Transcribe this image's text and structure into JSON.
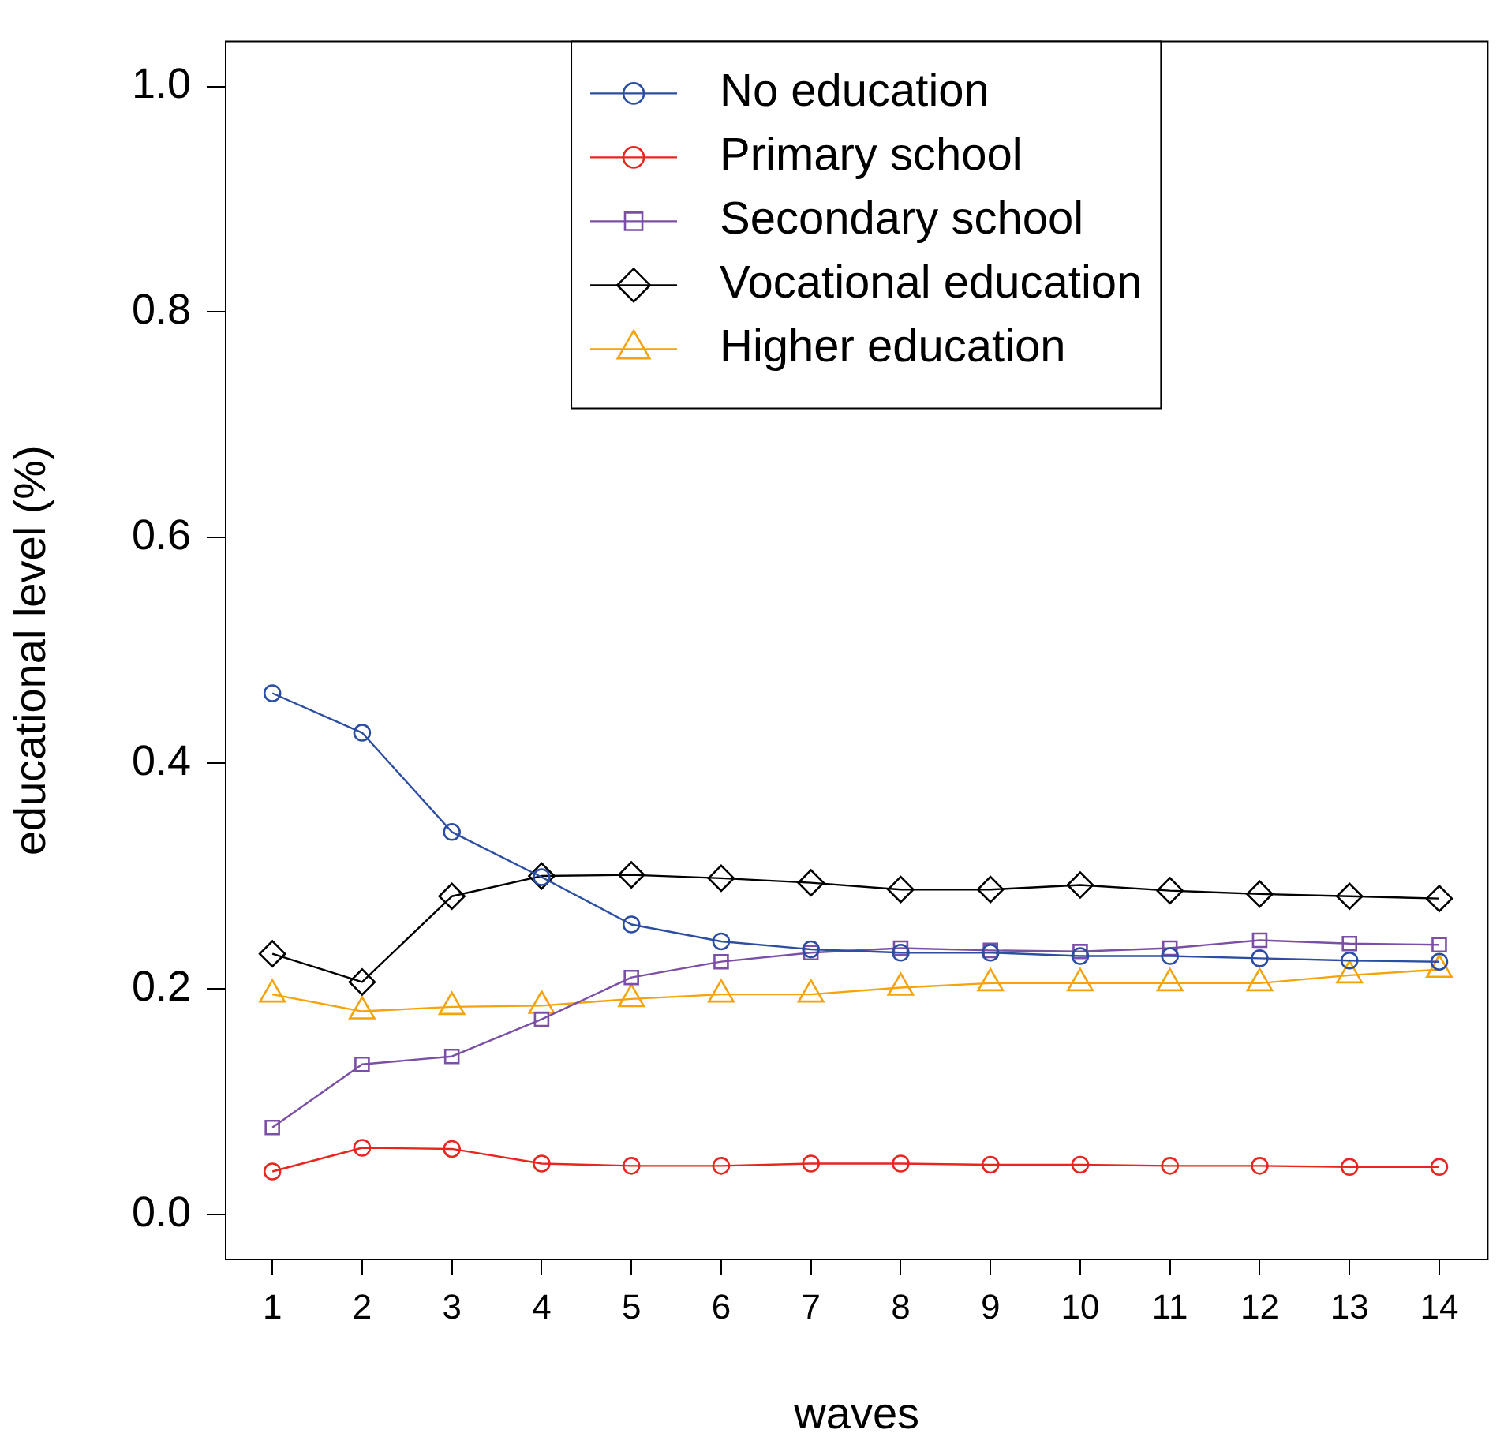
{
  "chart_data": {
    "type": "line",
    "xlabel": "waves",
    "ylabel": "educational level (%)",
    "x": [
      1,
      2,
      3,
      4,
      5,
      6,
      7,
      8,
      9,
      10,
      11,
      12,
      13,
      14
    ],
    "xlim": [
      0.48,
      14.54
    ],
    "xticks": [
      1,
      2,
      3,
      4,
      5,
      6,
      7,
      8,
      9,
      10,
      11,
      12,
      13,
      14
    ],
    "ylim": [
      -0.04,
      1.04
    ],
    "yticks": [
      {
        "value": 0,
        "label": "0.0"
      },
      0.2,
      0.4,
      0.6,
      0.8,
      {
        "value": 1,
        "label": "1.0"
      }
    ],
    "grid": false,
    "legend": "top",
    "line_style": "solid",
    "series": [
      {
        "name": "No education",
        "color": "#2b4ea2",
        "marker": "circle",
        "values": [
          0.462,
          0.427,
          0.339,
          0.299,
          0.257,
          0.242,
          0.235,
          0.232,
          0.232,
          0.229,
          0.229,
          0.227,
          0.225,
          0.224
        ]
      },
      {
        "name": "Primary school",
        "color": "#e8251f",
        "marker": "circle",
        "values": [
          0.038,
          0.059,
          0.058,
          0.045,
          0.043,
          0.043,
          0.045,
          0.045,
          0.044,
          0.044,
          0.043,
          0.043,
          0.042,
          0.042
        ]
      },
      {
        "name": "Secondary school",
        "color": "#7b4fa6",
        "marker": "square",
        "values": [
          0.077,
          0.133,
          0.14,
          0.173,
          0.21,
          0.224,
          0.232,
          0.236,
          0.234,
          0.233,
          0.236,
          0.243,
          0.24,
          0.239
        ]
      },
      {
        "name": "Vocational education",
        "color": "#000000",
        "marker": "diamond",
        "values": [
          0.231,
          0.206,
          0.282,
          0.3,
          0.301,
          0.298,
          0.294,
          0.288,
          0.288,
          0.292,
          0.287,
          0.284,
          0.282,
          0.28
        ]
      },
      {
        "name": "Higher education",
        "color": "#f5a30a",
        "marker": "triangle",
        "values": [
          0.195,
          0.18,
          0.184,
          0.185,
          0.191,
          0.195,
          0.195,
          0.201,
          0.205,
          0.205,
          0.205,
          0.205,
          0.212,
          0.217
        ]
      }
    ]
  }
}
